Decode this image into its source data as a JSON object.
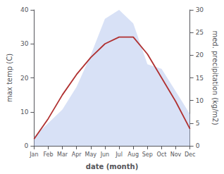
{
  "chart_data": {
    "type": "line",
    "categories": [
      "Jan",
      "Feb",
      "Mar",
      "Apr",
      "May",
      "Jun",
      "Jul",
      "Aug",
      "Sep",
      "Oct",
      "Nov",
      "Dec"
    ],
    "xlabel": "date (month)",
    "ylabel": "max temp (C)",
    "y2label": "med. precipitation (kg/m2)",
    "ylim": [
      0,
      40
    ],
    "yticks": [
      0,
      10,
      20,
      30,
      40
    ],
    "y2lim": [
      0,
      30
    ],
    "y2ticks": [
      0,
      5,
      10,
      15,
      20,
      25,
      30
    ],
    "grid": false,
    "series": [
      {
        "type": "area",
        "color": "#b8c8ee",
        "axis": "y2",
        "values": [
          2,
          5,
          8,
          13,
          20,
          28,
          30,
          27,
          18,
          17,
          12,
          7
        ]
      },
      {
        "type": "line",
        "color": "#b03030",
        "axis": "y",
        "values": [
          2,
          8,
          15,
          21,
          26,
          30,
          32,
          32,
          27,
          20,
          13,
          5
        ]
      }
    ]
  }
}
